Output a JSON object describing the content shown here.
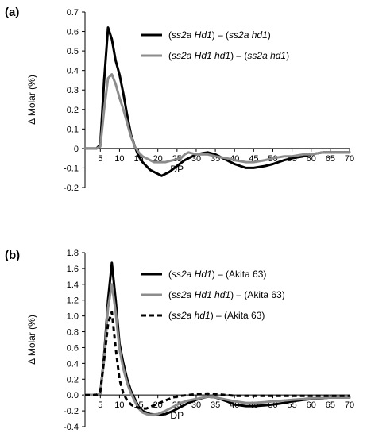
{
  "chart_data": [
    {
      "type": "line",
      "panel_label": "(a)",
      "xlabel": "DP",
      "ylabel": "Δ Molar (%)",
      "xlim": [
        1,
        70
      ],
      "ylim": [
        -0.2,
        0.7
      ],
      "yticks": [
        "0.7",
        "0.6",
        "0.5",
        "0.4",
        "0.3",
        "0.2",
        "0.1",
        "0",
        "-0.1",
        "-0.2"
      ],
      "xticks": [
        "5",
        "10",
        "15",
        "20",
        "25",
        "30",
        "35",
        "40",
        "45",
        "50",
        "55",
        "60",
        "65",
        "70"
      ],
      "legend_position": "top-right",
      "series": [
        {
          "name": "(ss2a Hd1) – (ss2a hd1)",
          "color": "#000000",
          "dash": "solid",
          "points": [
            [
              1,
              0
            ],
            [
              3,
              0
            ],
            [
              4,
              0
            ],
            [
              5,
              0.02
            ],
            [
              6,
              0.35
            ],
            [
              7,
              0.62
            ],
            [
              8,
              0.56
            ],
            [
              9,
              0.45
            ],
            [
              10,
              0.38
            ],
            [
              11,
              0.28
            ],
            [
              12,
              0.17
            ],
            [
              13,
              0.07
            ],
            [
              14,
              0.01
            ],
            [
              15,
              -0.04
            ],
            [
              16,
              -0.07
            ],
            [
              17,
              -0.09
            ],
            [
              18,
              -0.11
            ],
            [
              19,
              -0.12
            ],
            [
              20,
              -0.13
            ],
            [
              21,
              -0.14
            ],
            [
              22,
              -0.13
            ],
            [
              23,
              -0.12
            ],
            [
              25,
              -0.09
            ],
            [
              27,
              -0.06
            ],
            [
              30,
              -0.03
            ],
            [
              33,
              -0.02
            ],
            [
              35,
              -0.03
            ],
            [
              38,
              -0.06
            ],
            [
              40,
              -0.08
            ],
            [
              43,
              -0.1
            ],
            [
              45,
              -0.1
            ],
            [
              48,
              -0.09
            ],
            [
              50,
              -0.08
            ],
            [
              53,
              -0.06
            ],
            [
              55,
              -0.05
            ],
            [
              58,
              -0.04
            ],
            [
              60,
              -0.03
            ],
            [
              63,
              -0.02
            ],
            [
              65,
              -0.02
            ],
            [
              68,
              -0.02
            ],
            [
              70,
              -0.02
            ]
          ]
        },
        {
          "name": "(ss2a Hd1 hd1) – (ss2a hd1)",
          "color": "#8c8c8c",
          "dash": "solid",
          "points": [
            [
              1,
              0
            ],
            [
              3,
              0
            ],
            [
              4,
              0
            ],
            [
              5,
              0.01
            ],
            [
              6,
              0.2
            ],
            [
              7,
              0.36
            ],
            [
              8,
              0.38
            ],
            [
              9,
              0.33
            ],
            [
              10,
              0.26
            ],
            [
              11,
              0.2
            ],
            [
              12,
              0.13
            ],
            [
              13,
              0.06
            ],
            [
              14,
              0.01
            ],
            [
              15,
              -0.02
            ],
            [
              16,
              -0.04
            ],
            [
              17,
              -0.05
            ],
            [
              18,
              -0.06
            ],
            [
              19,
              -0.07
            ],
            [
              20,
              -0.07
            ],
            [
              22,
              -0.07
            ],
            [
              24,
              -0.06
            ],
            [
              26,
              -0.05
            ],
            [
              27,
              -0.03
            ],
            [
              28,
              -0.02
            ],
            [
              30,
              -0.03
            ],
            [
              33,
              -0.03
            ],
            [
              35,
              -0.04
            ],
            [
              38,
              -0.05
            ],
            [
              40,
              -0.06
            ],
            [
              43,
              -0.07
            ],
            [
              45,
              -0.07
            ],
            [
              48,
              -0.06
            ],
            [
              50,
              -0.05
            ],
            [
              53,
              -0.04
            ],
            [
              55,
              -0.04
            ],
            [
              58,
              -0.03
            ],
            [
              60,
              -0.03
            ],
            [
              63,
              -0.02
            ],
            [
              65,
              -0.02
            ],
            [
              68,
              -0.02
            ],
            [
              70,
              -0.02
            ]
          ]
        }
      ]
    },
    {
      "type": "line",
      "panel_label": "(b)",
      "xlabel": "DP",
      "ylabel": "Δ Molar (%)",
      "xlim": [
        1,
        70
      ],
      "ylim": [
        -0.4,
        1.8
      ],
      "yticks": [
        "1.8",
        "1.6",
        "1.4",
        "1.2",
        "1.0",
        "0.8",
        "0.6",
        "0.4",
        "0.2",
        "0.0",
        "-0.2",
        "-0.4"
      ],
      "xticks": [
        "5",
        "10",
        "15",
        "20",
        "25",
        "30",
        "35",
        "40",
        "45",
        "50",
        "55",
        "60",
        "65",
        "70"
      ],
      "legend_position": "top-right",
      "series": [
        {
          "name": "(ss2a Hd1) – (Akita 63)",
          "color": "#000000",
          "dash": "solid",
          "points": [
            [
              1,
              0
            ],
            [
              3,
              0
            ],
            [
              5,
              0.02
            ],
            [
              6,
              0.5
            ],
            [
              7,
              1.2
            ],
            [
              8,
              1.67
            ],
            [
              9,
              1.2
            ],
            [
              10,
              0.65
            ],
            [
              11,
              0.4
            ],
            [
              12,
              0.2
            ],
            [
              13,
              0.05
            ],
            [
              14,
              -0.05
            ],
            [
              15,
              -0.15
            ],
            [
              16,
              -0.2
            ],
            [
              17,
              -0.22
            ],
            [
              18,
              -0.24
            ],
            [
              20,
              -0.25
            ],
            [
              22,
              -0.24
            ],
            [
              24,
              -0.2
            ],
            [
              26,
              -0.15
            ],
            [
              28,
              -0.1
            ],
            [
              30,
              -0.06
            ],
            [
              33,
              -0.02
            ],
            [
              35,
              -0.03
            ],
            [
              38,
              -0.08
            ],
            [
              40,
              -0.12
            ],
            [
              43,
              -0.14
            ],
            [
              45,
              -0.14
            ],
            [
              48,
              -0.13
            ],
            [
              50,
              -0.12
            ],
            [
              53,
              -0.1
            ],
            [
              55,
              -0.08
            ],
            [
              58,
              -0.06
            ],
            [
              60,
              -0.05
            ],
            [
              63,
              -0.04
            ],
            [
              65,
              -0.03
            ],
            [
              68,
              -0.03
            ],
            [
              70,
              -0.03
            ]
          ]
        },
        {
          "name": "(ss2a Hd1 hd1) – (Akita 63)",
          "color": "#8c8c8c",
          "dash": "solid",
          "points": [
            [
              1,
              0
            ],
            [
              3,
              0
            ],
            [
              5,
              0.02
            ],
            [
              6,
              0.45
            ],
            [
              7,
              1.1
            ],
            [
              8,
              1.4
            ],
            [
              9,
              1.05
            ],
            [
              10,
              0.58
            ],
            [
              11,
              0.33
            ],
            [
              12,
              0.15
            ],
            [
              13,
              0.02
            ],
            [
              14,
              -0.08
            ],
            [
              15,
              -0.17
            ],
            [
              16,
              -0.22
            ],
            [
              17,
              -0.24
            ],
            [
              18,
              -0.25
            ],
            [
              20,
              -0.24
            ],
            [
              22,
              -0.2
            ],
            [
              24,
              -0.15
            ],
            [
              26,
              -0.1
            ],
            [
              28,
              -0.07
            ],
            [
              30,
              -0.05
            ],
            [
              33,
              -0.02
            ],
            [
              35,
              -0.03
            ],
            [
              38,
              -0.06
            ],
            [
              40,
              -0.08
            ],
            [
              43,
              -0.1
            ],
            [
              45,
              -0.1
            ],
            [
              48,
              -0.09
            ],
            [
              50,
              -0.08
            ],
            [
              53,
              -0.07
            ],
            [
              55,
              -0.06
            ],
            [
              58,
              -0.05
            ],
            [
              60,
              -0.04
            ],
            [
              63,
              -0.04
            ],
            [
              65,
              -0.03
            ],
            [
              68,
              -0.03
            ],
            [
              70,
              -0.03
            ]
          ]
        },
        {
          "name": "(ss2a hd1) – (Akita 63)",
          "color": "#000000",
          "dash": "dashed",
          "points": [
            [
              1,
              0
            ],
            [
              3,
              0
            ],
            [
              4,
              0
            ],
            [
              5,
              0.05
            ],
            [
              6,
              0.45
            ],
            [
              7,
              0.9
            ],
            [
              8,
              1.05
            ],
            [
              9,
              0.6
            ],
            [
              10,
              0.2
            ],
            [
              11,
              0.02
            ],
            [
              12,
              -0.07
            ],
            [
              13,
              -0.12
            ],
            [
              14,
              -0.15
            ],
            [
              15,
              -0.16
            ],
            [
              16,
              -0.17
            ],
            [
              17,
              -0.17
            ],
            [
              18,
              -0.15
            ],
            [
              20,
              -0.11
            ],
            [
              22,
              -0.07
            ],
            [
              24,
              -0.03
            ],
            [
              26,
              -0.01
            ],
            [
              28,
              0.0
            ],
            [
              30,
              0.01
            ],
            [
              33,
              0.02
            ],
            [
              35,
              0.01
            ],
            [
              38,
              0.0
            ],
            [
              40,
              -0.01
            ],
            [
              45,
              -0.01
            ],
            [
              50,
              -0.01
            ],
            [
              55,
              -0.01
            ],
            [
              60,
              -0.01
            ],
            [
              65,
              -0.01
            ],
            [
              70,
              -0.01
            ]
          ]
        }
      ]
    }
  ]
}
